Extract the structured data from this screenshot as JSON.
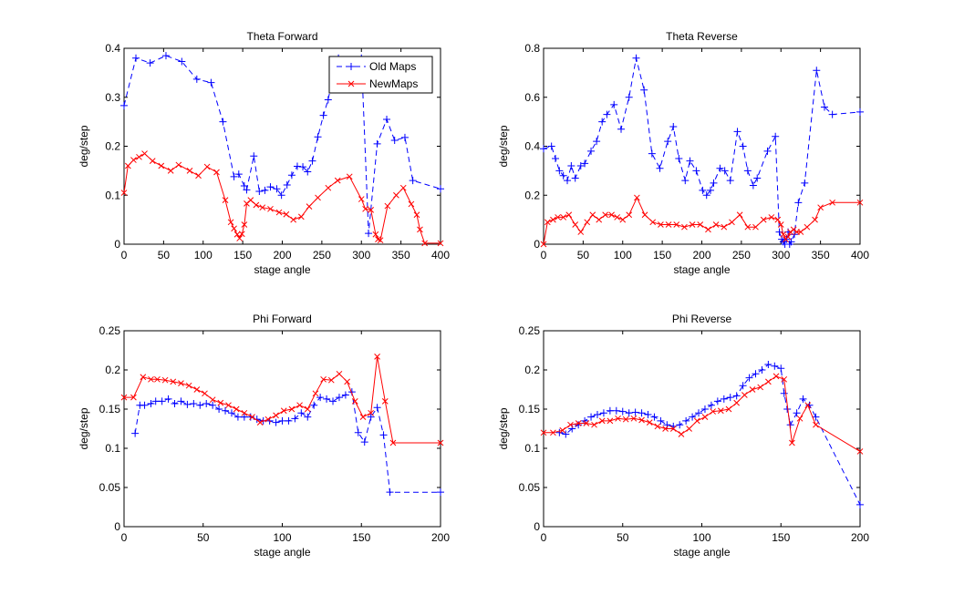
{
  "chart_data": [
    {
      "type": "line",
      "title": "Theta Forward",
      "xlabel": "stage angle",
      "ylabel": "deg/step",
      "xlim": [
        0,
        400
      ],
      "ylim": [
        0,
        0.4
      ],
      "xticks": [
        "0",
        "50",
        "100",
        "150",
        "200",
        "250",
        "300",
        "350",
        "400"
      ],
      "yticks": [
        "0",
        "0.1",
        "0.2",
        "0.3",
        "0.4"
      ],
      "legend": {
        "placement": "top-right",
        "entries": [
          "Old Maps",
          "NewMaps"
        ]
      },
      "series": [
        {
          "name": "Old Maps",
          "color": "#0000ff",
          "dash": "dashed",
          "marker": "plus",
          "x": [
            0,
            15,
            33,
            53,
            73,
            92,
            110,
            125,
            139,
            145,
            152,
            155,
            164,
            171,
            178,
            185,
            193,
            199,
            206,
            212,
            219,
            226,
            232,
            238,
            245,
            252,
            258,
            265,
            271,
            300,
            309,
            320,
            332,
            342,
            355,
            365,
            400
          ],
          "y": [
            0.283,
            0.38,
            0.37,
            0.385,
            0.373,
            0.337,
            0.33,
            0.25,
            0.138,
            0.143,
            0.119,
            0.111,
            0.18,
            0.108,
            0.11,
            0.117,
            0.113,
            0.1,
            0.121,
            0.141,
            0.159,
            0.158,
            0.148,
            0.17,
            0.219,
            0.263,
            0.295,
            0.35,
            0.38,
            0.38,
            0.022,
            0.205,
            0.255,
            0.212,
            0.218,
            0.13,
            0.113
          ]
        },
        {
          "name": "NewMaps",
          "color": "#ff0000",
          "dash": "solid",
          "marker": "x",
          "x": [
            0,
            5,
            12,
            19,
            26,
            36,
            47,
            59,
            69,
            83,
            94,
            105,
            117,
            128,
            135,
            139,
            143,
            146,
            149,
            152,
            155,
            160,
            167,
            175,
            185,
            196,
            205,
            214,
            224,
            234,
            245,
            258,
            270,
            285,
            300,
            305,
            312,
            318,
            321,
            324,
            333,
            344,
            353,
            363,
            370,
            374,
            380,
            400
          ],
          "y": [
            0.105,
            0.16,
            0.172,
            0.178,
            0.185,
            0.17,
            0.16,
            0.15,
            0.162,
            0.15,
            0.14,
            0.158,
            0.147,
            0.09,
            0.045,
            0.032,
            0.02,
            0.012,
            0.021,
            0.04,
            0.083,
            0.09,
            0.08,
            0.075,
            0.072,
            0.065,
            0.061,
            0.05,
            0.056,
            0.077,
            0.095,
            0.115,
            0.13,
            0.138,
            0.092,
            0.072,
            0.07,
            0.02,
            0.01,
            0.008,
            0.078,
            0.1,
            0.115,
            0.082,
            0.06,
            0.03,
            0.002,
            0.002
          ]
        }
      ]
    },
    {
      "type": "line",
      "title": "Theta Reverse",
      "xlabel": "stage angle",
      "ylabel": "deg/step",
      "xlim": [
        0,
        400
      ],
      "ylim": [
        0,
        0.8
      ],
      "xticks": [
        "0",
        "50",
        "100",
        "150",
        "200",
        "250",
        "300",
        "350",
        "400"
      ],
      "yticks": [
        "0",
        "0.2",
        "0.4",
        "0.6",
        "0.8"
      ],
      "series": [
        {
          "name": "Old Maps",
          "color": "#0000ff",
          "dash": "dashed",
          "marker": "plus",
          "x": [
            0,
            10,
            15,
            20,
            25,
            30,
            35,
            40,
            47,
            52,
            60,
            67,
            74,
            80,
            89,
            98,
            108,
            117,
            127,
            137,
            147,
            157,
            164,
            171,
            179,
            185,
            193,
            201,
            206,
            211,
            215,
            223,
            229,
            236,
            245,
            252,
            258,
            265,
            270,
            283,
            293,
            298,
            301,
            303,
            305,
            307,
            309,
            311,
            313,
            317,
            322,
            330,
            345,
            355,
            365,
            400
          ],
          "y": [
            0.39,
            0.4,
            0.35,
            0.3,
            0.28,
            0.26,
            0.32,
            0.27,
            0.32,
            0.33,
            0.38,
            0.42,
            0.5,
            0.53,
            0.57,
            0.47,
            0.6,
            0.76,
            0.63,
            0.37,
            0.31,
            0.42,
            0.48,
            0.35,
            0.26,
            0.34,
            0.3,
            0.22,
            0.2,
            0.22,
            0.25,
            0.31,
            0.3,
            0.26,
            0.46,
            0.4,
            0.3,
            0.24,
            0.27,
            0.38,
            0.44,
            0.05,
            0.02,
            0.01,
            0.0,
            0.02,
            0.05,
            0.0,
            0.01,
            0.04,
            0.17,
            0.25,
            0.71,
            0.56,
            0.53,
            0.54
          ]
        },
        {
          "name": "NewMaps",
          "color": "#ff0000",
          "dash": "solid",
          "marker": "x",
          "x": [
            0,
            5,
            12,
            18,
            25,
            32,
            40,
            47,
            55,
            62,
            70,
            78,
            86,
            93,
            100,
            108,
            118,
            128,
            138,
            148,
            158,
            168,
            178,
            188,
            198,
            208,
            218,
            228,
            238,
            248,
            258,
            268,
            278,
            288,
            296,
            300,
            303,
            306,
            309,
            312,
            316,
            320,
            325,
            333,
            343,
            350,
            365,
            400
          ],
          "y": [
            0.0,
            0.09,
            0.1,
            0.11,
            0.11,
            0.12,
            0.08,
            0.05,
            0.09,
            0.12,
            0.1,
            0.12,
            0.12,
            0.11,
            0.1,
            0.12,
            0.19,
            0.12,
            0.09,
            0.08,
            0.08,
            0.08,
            0.07,
            0.08,
            0.08,
            0.06,
            0.08,
            0.07,
            0.09,
            0.12,
            0.07,
            0.07,
            0.1,
            0.11,
            0.1,
            0.08,
            0.04,
            0.02,
            0.03,
            0.05,
            0.06,
            0.05,
            0.05,
            0.07,
            0.1,
            0.15,
            0.17,
            0.17
          ]
        }
      ]
    },
    {
      "type": "line",
      "title": "Phi Forward",
      "xlabel": "stage angle",
      "ylabel": "deg/step",
      "xlim": [
        0,
        200
      ],
      "ylim": [
        0,
        0.25
      ],
      "xticks": [
        "0",
        "50",
        "100",
        "150",
        "200"
      ],
      "yticks": [
        "0",
        "0.05",
        "0.1",
        "0.15",
        "0.2",
        "0.25"
      ],
      "series": [
        {
          "name": "Old Maps",
          "color": "#0000ff",
          "dash": "dashed",
          "marker": "plus",
          "x": [
            7,
            10,
            13,
            17,
            20,
            24,
            28,
            32,
            36,
            40,
            44,
            48,
            52,
            56,
            60,
            64,
            68,
            72,
            76,
            80,
            84,
            88,
            92,
            96,
            100,
            104,
            108,
            112,
            116,
            120,
            124,
            128,
            132,
            136,
            140,
            144,
            148,
            152,
            156,
            160,
            164,
            168,
            200
          ],
          "y": [
            0.119,
            0.155,
            0.155,
            0.157,
            0.16,
            0.16,
            0.163,
            0.157,
            0.16,
            0.156,
            0.157,
            0.155,
            0.157,
            0.155,
            0.15,
            0.148,
            0.145,
            0.14,
            0.14,
            0.14,
            0.137,
            0.135,
            0.135,
            0.133,
            0.135,
            0.135,
            0.138,
            0.145,
            0.14,
            0.155,
            0.165,
            0.163,
            0.16,
            0.165,
            0.168,
            0.172,
            0.12,
            0.108,
            0.14,
            0.152,
            0.117,
            0.044,
            0.044
          ]
        },
        {
          "name": "NewMaps",
          "color": "#ff0000",
          "dash": "solid",
          "marker": "x",
          "x": [
            0,
            6,
            12,
            17,
            21,
            26,
            31,
            36,
            41,
            46,
            51,
            56,
            61,
            66,
            71,
            76,
            81,
            86,
            91,
            96,
            101,
            106,
            111,
            116,
            121,
            126,
            131,
            136,
            141,
            146,
            151,
            156,
            160,
            165,
            170,
            200
          ],
          "y": [
            0.165,
            0.165,
            0.191,
            0.188,
            0.188,
            0.187,
            0.185,
            0.183,
            0.18,
            0.175,
            0.17,
            0.162,
            0.158,
            0.155,
            0.15,
            0.145,
            0.14,
            0.133,
            0.137,
            0.142,
            0.148,
            0.15,
            0.155,
            0.15,
            0.17,
            0.188,
            0.187,
            0.195,
            0.185,
            0.16,
            0.14,
            0.145,
            0.217,
            0.16,
            0.107,
            0.107
          ]
        }
      ]
    },
    {
      "type": "line",
      "title": "Phi Reverse",
      "xlabel": "stage angle",
      "ylabel": "deg/step",
      "xlim": [
        0,
        200
      ],
      "ylim": [
        0,
        0.25
      ],
      "xticks": [
        "0",
        "50",
        "100",
        "150",
        "200"
      ],
      "yticks": [
        "0",
        "0.05",
        "0.1",
        "0.15",
        "0.2",
        "0.25"
      ],
      "series": [
        {
          "name": "Old Maps",
          "color": "#0000ff",
          "dash": "dashed",
          "marker": "plus",
          "x": [
            10,
            14,
            18,
            22,
            26,
            30,
            34,
            38,
            42,
            46,
            50,
            54,
            58,
            62,
            66,
            70,
            74,
            78,
            82,
            86,
            90,
            94,
            98,
            102,
            106,
            110,
            114,
            118,
            122,
            126,
            130,
            134,
            138,
            142,
            146,
            150,
            152,
            154,
            156,
            160,
            164,
            168,
            172,
            200
          ],
          "y": [
            0.12,
            0.118,
            0.125,
            0.13,
            0.135,
            0.14,
            0.143,
            0.145,
            0.148,
            0.148,
            0.147,
            0.145,
            0.146,
            0.145,
            0.143,
            0.14,
            0.135,
            0.13,
            0.128,
            0.13,
            0.135,
            0.14,
            0.145,
            0.15,
            0.155,
            0.16,
            0.163,
            0.165,
            0.167,
            0.18,
            0.19,
            0.195,
            0.2,
            0.207,
            0.205,
            0.202,
            0.17,
            0.15,
            0.13,
            0.145,
            0.163,
            0.155,
            0.14,
            0.028
          ]
        },
        {
          "name": "NewMaps",
          "color": "#ff0000",
          "dash": "solid",
          "marker": "x",
          "x": [
            0,
            6,
            12,
            17,
            22,
            27,
            32,
            37,
            42,
            47,
            52,
            57,
            62,
            67,
            72,
            77,
            82,
            87,
            92,
            97,
            102,
            107,
            112,
            117,
            122,
            127,
            132,
            137,
            142,
            147,
            152,
            157,
            162,
            167,
            172,
            200
          ],
          "y": [
            0.12,
            0.12,
            0.123,
            0.13,
            0.132,
            0.132,
            0.13,
            0.135,
            0.135,
            0.138,
            0.137,
            0.138,
            0.136,
            0.133,
            0.128,
            0.125,
            0.125,
            0.118,
            0.125,
            0.135,
            0.14,
            0.147,
            0.148,
            0.15,
            0.158,
            0.168,
            0.175,
            0.178,
            0.185,
            0.192,
            0.188,
            0.107,
            0.138,
            0.155,
            0.13,
            0.096
          ]
        }
      ]
    }
  ]
}
